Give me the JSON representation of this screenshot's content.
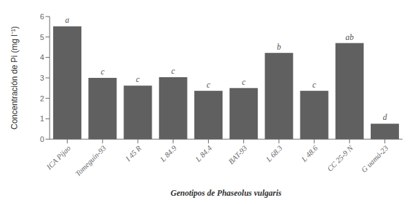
{
  "chart_data": {
    "type": "bar",
    "categories": [
      "ICA Pijao",
      "Tomeguín-93",
      "I 45 R",
      "L 84.9",
      "L 84.4",
      "BAT-93",
      "L 68.3",
      "L 48.6",
      "CC 25-9 N",
      "G uamá-23"
    ],
    "values": [
      5.52,
      3.0,
      2.62,
      3.03,
      2.37,
      2.5,
      4.22,
      2.37,
      4.7,
      0.76
    ],
    "annotations": [
      "a",
      "c",
      "c",
      "c",
      "c",
      "c",
      "b",
      "c",
      "ab",
      "d"
    ],
    "color": "#606060",
    "xlabel": "Genotipos de Phaseolus vulgaris",
    "ylabel": "Concentración de Pi (mg l⁻¹)",
    "ylim": [
      0,
      6
    ],
    "yticks": [
      0,
      1,
      2,
      3,
      4,
      5,
      6
    ],
    "grid": false
  }
}
